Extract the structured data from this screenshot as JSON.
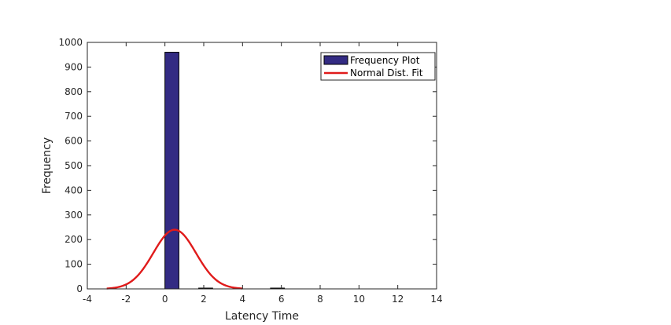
{
  "chart_data": {
    "type": "bar",
    "title": "",
    "xlabel": "Latency Time",
    "ylabel": "Frequency",
    "xlim": [
      -4,
      14
    ],
    "ylim": [
      0,
      1000
    ],
    "xticks": [
      -4,
      -2,
      0,
      2,
      4,
      6,
      8,
      10,
      12,
      14
    ],
    "yticks": [
      0,
      100,
      200,
      300,
      400,
      500,
      600,
      700,
      800,
      900,
      1000
    ],
    "grid": false,
    "legend_position": "top-right",
    "series": [
      {
        "name": "Frequency Plot",
        "type": "bar",
        "color": "#332b83",
        "edge_color": "#000000",
        "bin_width": 0.72,
        "bins": [
          {
            "x": 0.36,
            "value": 960
          },
          {
            "x": 2.1,
            "value": 3
          },
          {
            "x": 5.8,
            "value": 2
          }
        ]
      },
      {
        "name": "Normal Dist. Fit",
        "type": "line",
        "color": "#e01b1b",
        "mean": 0.5,
        "sd": 1.1,
        "peak": 240,
        "x_range": [
          -3.0,
          4.0
        ]
      }
    ]
  }
}
